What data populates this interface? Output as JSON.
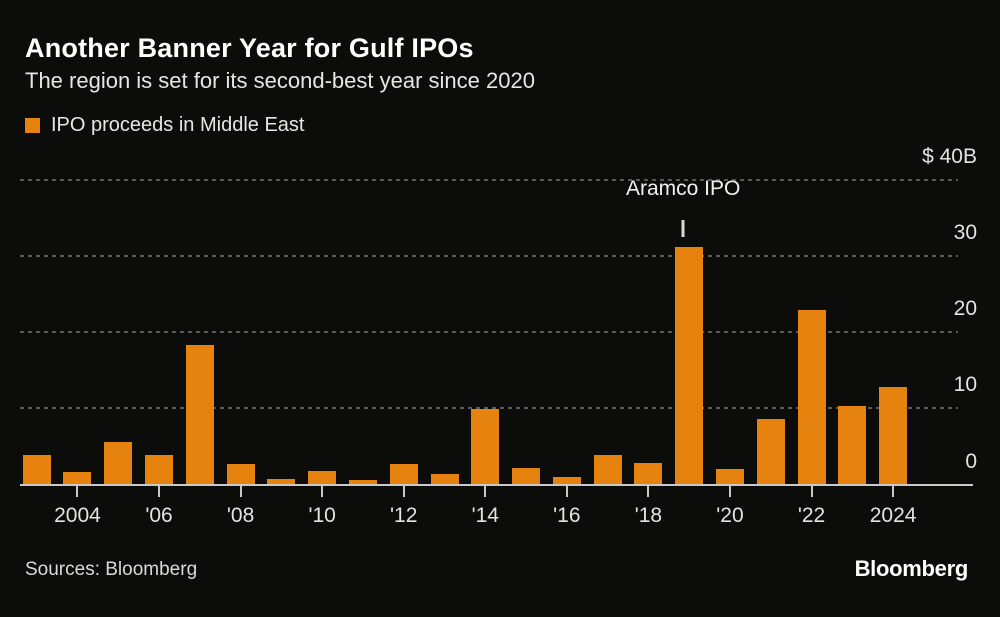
{
  "header": {
    "title": "Another Banner Year for Gulf IPOs",
    "subtitle": "The region is set for its second-best year since 2020"
  },
  "legend": {
    "label": "IPO proceeds in Middle East",
    "swatch_color": "#e6830f"
  },
  "footer": {
    "sources": "Sources: Bloomberg",
    "logo": "Bloomberg"
  },
  "colors": {
    "background": "#0c0c0a",
    "bar": "#e6830f",
    "grid": "#585854",
    "axis": "#c9c9c9",
    "text": "#e6e6e6"
  },
  "chart_data": {
    "type": "bar",
    "title": "Another Banner Year for Gulf IPOs",
    "subtitle": "The region is set for its second-best year since 2020",
    "series_name": "IPO proceeds in Middle East",
    "unit": "USD billions",
    "categories": [
      2003,
      2004,
      2005,
      2006,
      2007,
      2008,
      2009,
      2010,
      2011,
      2012,
      2013,
      2014,
      2015,
      2016,
      2017,
      2018,
      2019,
      2020,
      2021,
      2022,
      2023,
      2024
    ],
    "values": [
      3.9,
      1.7,
      5.7,
      3.9,
      18.4,
      2.8,
      0.8,
      1.8,
      0.6,
      2.8,
      1.5,
      10.0,
      2.2,
      1.1,
      4.0,
      2.9,
      31.2,
      2.1,
      8.7,
      23.0,
      10.4,
      12.9
    ],
    "ylim": [
      0,
      42
    ],
    "y_ticks": [
      0,
      10,
      20,
      30,
      40
    ],
    "y_tick_labels": [
      "0",
      "10",
      "20",
      "30",
      "$ 40B"
    ],
    "x_tick_years": [
      2004,
      2006,
      2008,
      2010,
      2012,
      2014,
      2016,
      2018,
      2020,
      2022,
      2024
    ],
    "x_tick_labels": [
      "2004",
      "'06",
      "'08",
      "'10",
      "'12",
      "'14",
      "'16",
      "'18",
      "'20",
      "'22",
      "2024"
    ],
    "grid": "horizontal-dashed",
    "legend_position": "top-left",
    "annotation": {
      "text": "Aramco IPO",
      "target_year": 2019
    }
  }
}
